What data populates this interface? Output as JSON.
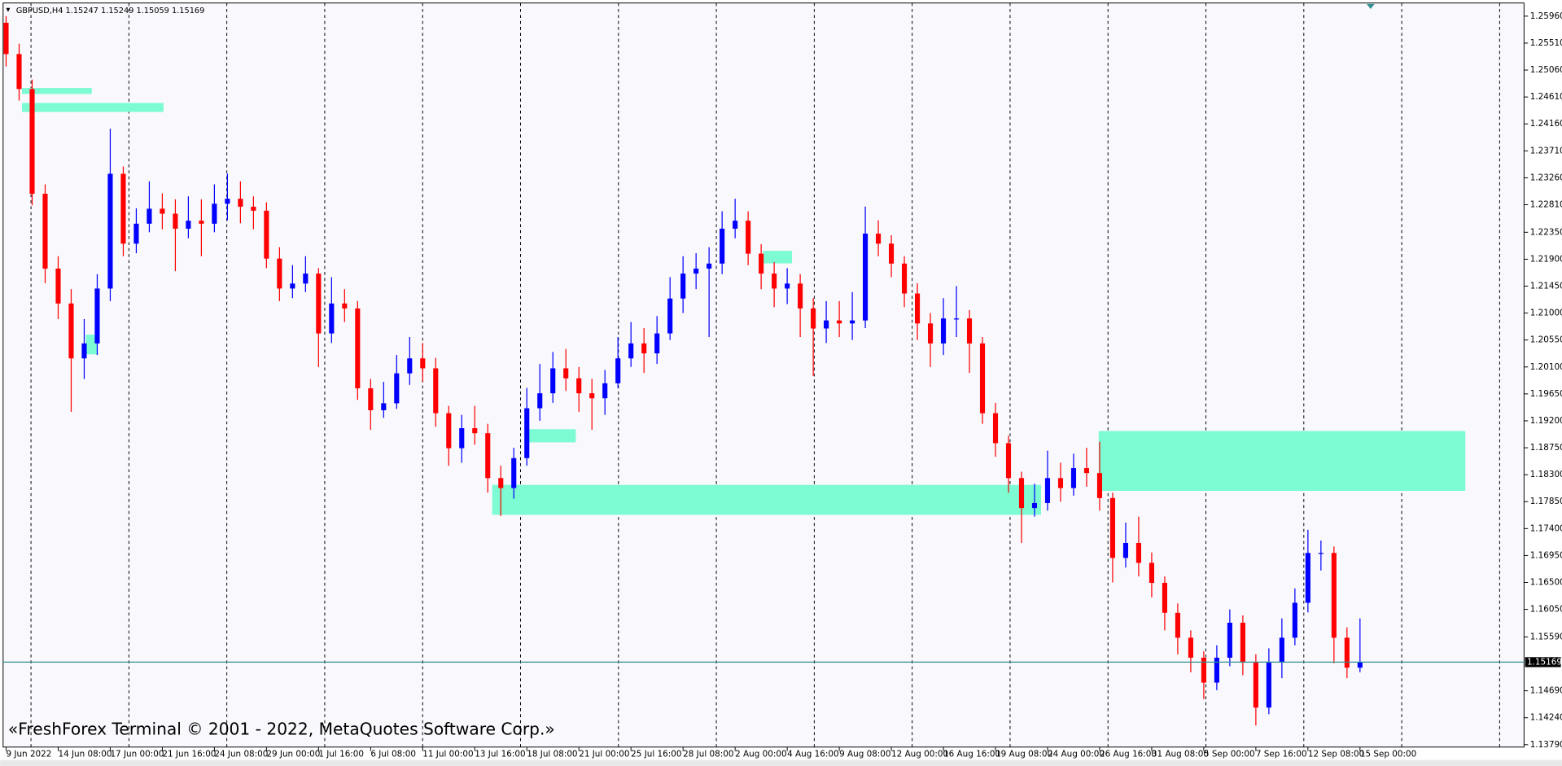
{
  "chart_data": {
    "type": "candlestick",
    "title": "GBPUSD,H4  1.15247 1.15249 1.15059 1.15169",
    "watermark": "«FreshForex Terminal © 2001 - 2022, MetaQuotes Software Corp.»",
    "up_color": "#0000ff",
    "down_color": "#ff0000",
    "zone_color": "#7dfbd2",
    "price_line": {
      "value": 1.15169,
      "color": "#2f8f8f"
    },
    "xlim": [
      -0.23,
      116.6
    ],
    "ylim": [
      1.1375,
      1.2618
    ],
    "yticks": [
      {
        "value": 1.2596,
        "label": "1.25960"
      },
      {
        "value": 1.2551,
        "label": "1.25510"
      },
      {
        "value": 1.2506,
        "label": "1.25060"
      },
      {
        "value": 1.2461,
        "label": "1.24610"
      },
      {
        "value": 1.2416,
        "label": "1.24160"
      },
      {
        "value": 1.2371,
        "label": "1.23710"
      },
      {
        "value": 1.2326,
        "label": "1.23260"
      },
      {
        "value": 1.2281,
        "label": "1.22810"
      },
      {
        "value": 1.2235,
        "label": "1.22350"
      },
      {
        "value": 1.219,
        "label": "1.21900"
      },
      {
        "value": 1.2145,
        "label": "1.21450"
      },
      {
        "value": 1.21,
        "label": "1.21000"
      },
      {
        "value": 1.2055,
        "label": "1.20550"
      },
      {
        "value": 1.201,
        "label": "1.20100"
      },
      {
        "value": 1.1965,
        "label": "1.19650"
      },
      {
        "value": 1.192,
        "label": "1.19200"
      },
      {
        "value": 1.1875,
        "label": "1.18750"
      },
      {
        "value": 1.183,
        "label": "1.18300"
      },
      {
        "value": 1.1785,
        "label": "1.17850"
      },
      {
        "value": 1.174,
        "label": "1.17400"
      },
      {
        "value": 1.1695,
        "label": "1.16950"
      },
      {
        "value": 1.165,
        "label": "1.16500"
      },
      {
        "value": 1.1605,
        "label": "1.16050"
      },
      {
        "value": 1.1559,
        "label": "1.15590"
      },
      {
        "value": 1.1469,
        "label": "1.14690"
      },
      {
        "value": 1.1424,
        "label": "1.14240"
      },
      {
        "value": 1.1379,
        "label": "1.13790"
      }
    ],
    "xticks": [
      {
        "value": 0,
        "label": "9 Jun 2022"
      },
      {
        "value": 4,
        "label": "14 Jun 08:00"
      },
      {
        "value": 8,
        "label": "17 Jun 00:00"
      },
      {
        "value": 12,
        "label": "21 Jun 16:00"
      },
      {
        "value": 16,
        "label": "24 Jun 08:00"
      },
      {
        "value": 20,
        "label": "29 Jun 00:00"
      },
      {
        "value": 24,
        "label": "1 Jul 16:00"
      },
      {
        "value": 28,
        "label": "6 Jul 08:00"
      },
      {
        "value": 32,
        "label": "11 Jul 00:00"
      },
      {
        "value": 36,
        "label": "13 Jul 16:00"
      },
      {
        "value": 40,
        "label": "18 Jul 08:00"
      },
      {
        "value": 44,
        "label": "21 Jul 00:00"
      },
      {
        "value": 48,
        "label": "25 Jul 16:00"
      },
      {
        "value": 52,
        "label": "28 Jul 08:00"
      },
      {
        "value": 56,
        "label": "2 Aug 00:00"
      },
      {
        "value": 60,
        "label": "4 Aug 16:00"
      },
      {
        "value": 64,
        "label": "9 Aug 08:00"
      },
      {
        "value": 68,
        "label": "12 Aug 00:00"
      },
      {
        "value": 72,
        "label": "16 Aug 16:00"
      },
      {
        "value": 76,
        "label": "19 Aug 08:00"
      },
      {
        "value": 80,
        "label": "24 Aug 00:00"
      },
      {
        "value": 84,
        "label": "26 Aug 16:00"
      },
      {
        "value": 88,
        "label": "31 Aug 08:00"
      },
      {
        "value": 92,
        "label": "5 Sep 00:00"
      },
      {
        "value": 96,
        "label": "7 Sep 16:00"
      },
      {
        "value": 100,
        "label": "12 Sep 08:00"
      },
      {
        "value": 104,
        "label": "15 Sep 00:00"
      }
    ],
    "zones": [
      {
        "x": [
          1.22,
          6.58
        ],
        "y": [
          1.2466,
          1.2476
        ]
      },
      {
        "x": [
          1.22,
          12.09
        ],
        "y": [
          1.2436,
          1.2451
        ]
      },
      {
        "x": [
          6.12,
          7.04
        ],
        "y": [
          1.2031,
          1.2064
        ]
      },
      {
        "x": [
          39.86,
          43.76
        ],
        "y": [
          1.1884,
          1.1906
        ]
      },
      {
        "x": [
          37.34,
          79.5
        ],
        "y": [
          1.1763,
          1.1813
        ]
      },
      {
        "x": [
          83.93,
          112.09
        ],
        "y": [
          1.1803,
          1.1903
        ]
      },
      {
        "x": [
          58.15,
          60.37
        ],
        "y": [
          1.2183,
          1.2204
        ]
      }
    ],
    "ohlc": [
      [
        1.2585,
        1.2596,
        1.2512,
        1.25327
      ],
      [
        1.25327,
        1.255,
        1.2455,
        1.24743
      ],
      [
        1.24743,
        1.249,
        1.228,
        1.22993
      ],
      [
        1.22993,
        1.2315,
        1.215,
        1.21743
      ],
      [
        1.21743,
        1.2195,
        1.209,
        1.2116
      ],
      [
        1.2116,
        1.214,
        1.1935,
        1.20243
      ],
      [
        1.20243,
        1.209,
        1.199,
        1.20493
      ],
      [
        1.20493,
        1.2165,
        1.203,
        1.2141
      ],
      [
        1.2141,
        1.2408,
        1.212,
        1.23327
      ],
      [
        1.23327,
        1.2345,
        1.2195,
        1.2216
      ],
      [
        1.2216,
        1.2275,
        1.22,
        1.22493
      ],
      [
        1.22493,
        1.232,
        1.2235,
        1.22743
      ],
      [
        1.22743,
        1.23,
        1.224,
        1.2266
      ],
      [
        1.2266,
        1.229,
        1.217,
        1.2241
      ],
      [
        1.2241,
        1.2295,
        1.2225,
        1.22543
      ],
      [
        1.22543,
        1.229,
        1.2195,
        1.22493
      ],
      [
        1.22493,
        1.2315,
        1.2235,
        1.22827
      ],
      [
        1.22827,
        1.2333,
        1.2255,
        1.2291
      ],
      [
        1.2291,
        1.232,
        1.225,
        1.22777
      ],
      [
        1.22777,
        1.2295,
        1.224,
        1.2271
      ],
      [
        1.2271,
        1.2285,
        1.2175,
        1.2191
      ],
      [
        1.2191,
        1.221,
        1.212,
        1.2141
      ],
      [
        1.2141,
        1.218,
        1.2125,
        1.21493
      ],
      [
        1.21493,
        1.2195,
        1.2135,
        1.2166
      ],
      [
        1.2166,
        1.2175,
        1.201,
        1.2066
      ],
      [
        1.2066,
        1.216,
        1.205,
        1.2116
      ],
      [
        1.2116,
        1.214,
        1.2085,
        1.21077
      ],
      [
        1.21077,
        1.212,
        1.1955,
        1.19743
      ],
      [
        1.19743,
        1.199,
        1.1905,
        1.19377
      ],
      [
        1.19377,
        1.1985,
        1.1925,
        1.19493
      ],
      [
        1.19493,
        1.203,
        1.194,
        1.19993
      ],
      [
        1.19993,
        1.206,
        1.198,
        1.20243
      ],
      [
        1.20243,
        1.205,
        1.1985,
        1.20077
      ],
      [
        1.20077,
        1.2025,
        1.191,
        1.19327
      ],
      [
        1.19327,
        1.1945,
        1.1845,
        1.18743
      ],
      [
        1.18743,
        1.193,
        1.185,
        1.19077
      ],
      [
        1.19077,
        1.1945,
        1.188,
        1.18993
      ],
      [
        1.18993,
        1.1915,
        1.18,
        1.18243
      ],
      [
        1.18243,
        1.1845,
        1.1761,
        1.18077
      ],
      [
        1.18077,
        1.1875,
        1.179,
        1.18577
      ],
      [
        1.18577,
        1.1975,
        1.1845,
        1.1941
      ],
      [
        1.1941,
        1.2015,
        1.192,
        1.1966
      ],
      [
        1.1966,
        1.2035,
        1.195,
        1.20077
      ],
      [
        1.20077,
        1.204,
        1.197,
        1.1991
      ],
      [
        1.1991,
        1.201,
        1.1935,
        1.1966
      ],
      [
        1.1966,
        1.199,
        1.1905,
        1.19577
      ],
      [
        1.19577,
        1.2005,
        1.193,
        1.19827
      ],
      [
        1.19827,
        1.206,
        1.1975,
        1.20243
      ],
      [
        1.20243,
        1.2085,
        1.201,
        1.20493
      ],
      [
        1.20493,
        1.2075,
        1.2,
        1.20327
      ],
      [
        1.20327,
        1.2095,
        1.2015,
        1.2066
      ],
      [
        1.2066,
        1.216,
        1.2055,
        1.21243
      ],
      [
        1.21243,
        1.2195,
        1.21,
        1.2166
      ],
      [
        1.2166,
        1.22,
        1.214,
        1.21743
      ],
      [
        1.21743,
        1.221,
        1.206,
        1.21827
      ],
      [
        1.21827,
        1.227,
        1.2165,
        1.2241
      ],
      [
        1.2241,
        1.2291,
        1.2225,
        1.22543
      ],
      [
        1.22543,
        1.227,
        1.218,
        1.21993
      ],
      [
        1.21993,
        1.2215,
        1.214,
        1.2166
      ],
      [
        1.2166,
        1.2185,
        1.211,
        1.2141
      ],
      [
        1.2141,
        1.2175,
        1.2115,
        1.21493
      ],
      [
        1.21493,
        1.2165,
        1.206,
        1.21077
      ],
      [
        1.21077,
        1.2125,
        1.1995,
        1.20743
      ],
      [
        1.20743,
        1.212,
        1.205,
        1.20877
      ],
      [
        1.20877,
        1.212,
        1.206,
        1.20827
      ],
      [
        1.20827,
        1.2135,
        1.2055,
        1.20877
      ],
      [
        1.20877,
        1.2278,
        1.2075,
        1.22327
      ],
      [
        1.22327,
        1.2255,
        1.2195,
        1.2216
      ],
      [
        1.2216,
        1.223,
        1.216,
        1.21827
      ],
      [
        1.21827,
        1.2195,
        1.211,
        1.21327
      ],
      [
        1.21327,
        1.215,
        1.2055,
        1.20827
      ],
      [
        1.20827,
        1.21,
        1.201,
        1.20493
      ],
      [
        1.20493,
        1.2125,
        1.203,
        1.2091
      ],
      [
        1.2091,
        1.2145,
        1.206,
        1.2091
      ],
      [
        1.2091,
        1.2105,
        1.2,
        1.20493
      ],
      [
        1.20493,
        1.206,
        1.1915,
        1.19327
      ],
      [
        1.19327,
        1.195,
        1.186,
        1.18827
      ],
      [
        1.18827,
        1.1895,
        1.18,
        1.18243
      ],
      [
        1.18243,
        1.1835,
        1.1716,
        1.17743
      ],
      [
        1.17743,
        1.1815,
        1.176,
        1.17827
      ],
      [
        1.17827,
        1.187,
        1.177,
        1.18243
      ],
      [
        1.18243,
        1.185,
        1.1785,
        1.18077
      ],
      [
        1.18077,
        1.1865,
        1.1795,
        1.1841
      ],
      [
        1.1841,
        1.1875,
        1.181,
        1.18327
      ],
      [
        1.18327,
        1.1885,
        1.177,
        1.1791
      ],
      [
        1.1791,
        1.18,
        1.165,
        1.1691
      ],
      [
        1.1691,
        1.175,
        1.1675,
        1.1716
      ],
      [
        1.1716,
        1.176,
        1.166,
        1.16827
      ],
      [
        1.16827,
        1.17,
        1.1625,
        1.16493
      ],
      [
        1.16493,
        1.166,
        1.157,
        1.15993
      ],
      [
        1.15993,
        1.1615,
        1.153,
        1.15577
      ],
      [
        1.15577,
        1.157,
        1.15,
        1.15243
      ],
      [
        1.15243,
        1.1535,
        1.1455,
        1.14827
      ],
      [
        1.14827,
        1.1545,
        1.147,
        1.15243
      ],
      [
        1.15243,
        1.1605,
        1.151,
        1.15827
      ],
      [
        1.15827,
        1.1595,
        1.1495,
        1.1516
      ],
      [
        1.1516,
        1.153,
        1.1411,
        1.1441
      ],
      [
        1.1441,
        1.154,
        1.143,
        1.1516
      ],
      [
        1.1516,
        1.159,
        1.149,
        1.15577
      ],
      [
        1.15577,
        1.164,
        1.1545,
        1.1616
      ],
      [
        1.1616,
        1.1738,
        1.16,
        1.16993
      ],
      [
        1.16993,
        1.172,
        1.167,
        1.16993
      ],
      [
        1.16993,
        1.171,
        1.1515,
        1.15577
      ],
      [
        1.15577,
        1.1575,
        1.149,
        1.15077
      ],
      [
        1.15077,
        1.159,
        1.15,
        1.15169
      ]
    ]
  }
}
